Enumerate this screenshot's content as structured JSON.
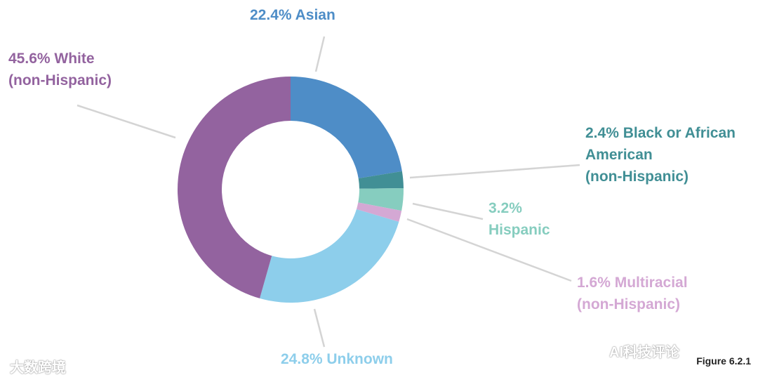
{
  "chart_data": {
    "type": "pie",
    "donut": true,
    "slices": [
      {
        "name": "Asian",
        "value": 22.4,
        "color": "#4E8DC7",
        "label_lines": [
          "22.4% Asian"
        ]
      },
      {
        "name": "Black or African American (non-Hispanic)",
        "value": 2.4,
        "color": "#418F95",
        "label_lines": [
          "2.4% Black or African",
          "American",
          "(non-Hispanic)"
        ]
      },
      {
        "name": "Hispanic",
        "value": 3.2,
        "color": "#86CDBF",
        "label_lines": [
          "3.2%",
          "Hispanic"
        ]
      },
      {
        "name": "Multiracial (non-Hispanic)",
        "value": 1.6,
        "color": "#D4A8D4",
        "label_lines": [
          "1.6% Multiracial",
          "(non-Hispanic)"
        ]
      },
      {
        "name": "Unknown",
        "value": 24.8,
        "color": "#8DCEEB",
        "label_lines": [
          "24.8% Unknown"
        ]
      },
      {
        "name": "White (non-Hispanic)",
        "value": 45.6,
        "color": "#93639F",
        "label_lines": [
          "45.6% White",
          "(non-Hispanic)"
        ]
      }
    ]
  },
  "caption": "Figure 6.2.1",
  "watermarks": {
    "left": "大数跨境",
    "right": "AI科技评论"
  }
}
